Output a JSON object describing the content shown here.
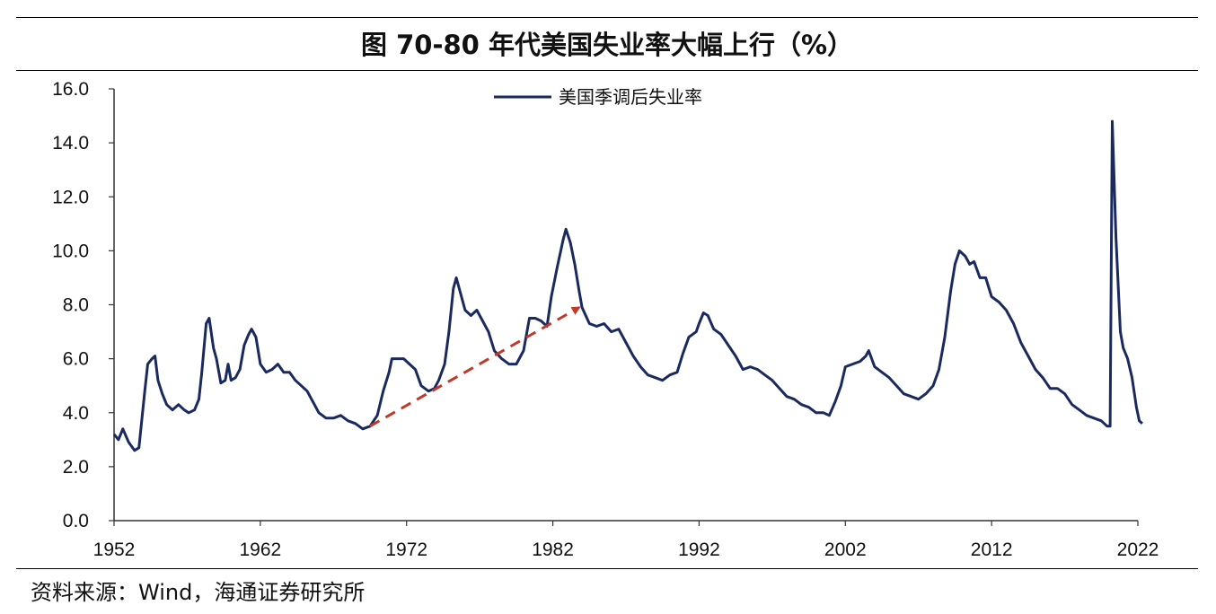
{
  "title": "图  70-80 年代美国失业率大幅上行（%）",
  "source": "资料来源：Wind，海通证券研究所",
  "colors": {
    "series": "#1b2a5e",
    "arrow": "#c0392b",
    "axis": "#333333"
  },
  "chart_data": {
    "type": "line",
    "title": "图  70-80 年代美国失业率大幅上行（%）",
    "xlabel": "",
    "ylabel": "",
    "xlim": [
      1952,
      2022
    ],
    "ylim": [
      0,
      16
    ],
    "x_ticks": [
      "1952",
      "1962",
      "1972",
      "1982",
      "1992",
      "2002",
      "2012",
      "2022"
    ],
    "y_ticks": [
      "0.0",
      "2.0",
      "4.0",
      "6.0",
      "8.0",
      "10.0",
      "12.0",
      "14.0",
      "16.0"
    ],
    "grid": false,
    "legend_position": "top-center",
    "series": [
      {
        "name": "美国季调后失业率",
        "points": [
          [
            1952.0,
            3.2
          ],
          [
            1952.3,
            3.0
          ],
          [
            1952.6,
            3.4
          ],
          [
            1953.0,
            2.9
          ],
          [
            1953.4,
            2.6
          ],
          [
            1953.7,
            2.7
          ],
          [
            1954.1,
            4.8
          ],
          [
            1954.3,
            5.8
          ],
          [
            1954.6,
            6.0
          ],
          [
            1954.8,
            6.1
          ],
          [
            1955.0,
            5.2
          ],
          [
            1955.3,
            4.7
          ],
          [
            1955.6,
            4.3
          ],
          [
            1956.0,
            4.1
          ],
          [
            1956.4,
            4.3
          ],
          [
            1956.8,
            4.1
          ],
          [
            1957.1,
            4.0
          ],
          [
            1957.5,
            4.1
          ],
          [
            1957.8,
            4.5
          ],
          [
            1958.0,
            5.5
          ],
          [
            1958.3,
            7.3
          ],
          [
            1958.5,
            7.5
          ],
          [
            1958.8,
            6.4
          ],
          [
            1959.0,
            6.0
          ],
          [
            1959.3,
            5.1
          ],
          [
            1959.6,
            5.2
          ],
          [
            1959.8,
            5.8
          ],
          [
            1960.0,
            5.2
          ],
          [
            1960.3,
            5.3
          ],
          [
            1960.6,
            5.6
          ],
          [
            1960.9,
            6.5
          ],
          [
            1961.2,
            6.9
          ],
          [
            1961.4,
            7.1
          ],
          [
            1961.7,
            6.8
          ],
          [
            1962.0,
            5.8
          ],
          [
            1962.4,
            5.5
          ],
          [
            1962.8,
            5.6
          ],
          [
            1963.2,
            5.8
          ],
          [
            1963.6,
            5.5
          ],
          [
            1964.0,
            5.5
          ],
          [
            1964.4,
            5.2
          ],
          [
            1964.8,
            5.0
          ],
          [
            1965.2,
            4.8
          ],
          [
            1965.6,
            4.4
          ],
          [
            1966.0,
            4.0
          ],
          [
            1966.5,
            3.8
          ],
          [
            1967.0,
            3.8
          ],
          [
            1967.5,
            3.9
          ],
          [
            1968.0,
            3.7
          ],
          [
            1968.5,
            3.6
          ],
          [
            1969.0,
            3.4
          ],
          [
            1969.5,
            3.5
          ],
          [
            1970.0,
            3.9
          ],
          [
            1970.4,
            4.8
          ],
          [
            1970.8,
            5.5
          ],
          [
            1971.0,
            6.0
          ],
          [
            1971.3,
            6.0
          ],
          [
            1971.8,
            6.0
          ],
          [
            1972.2,
            5.8
          ],
          [
            1972.6,
            5.6
          ],
          [
            1973.0,
            5.0
          ],
          [
            1973.5,
            4.8
          ],
          [
            1973.9,
            4.9
          ],
          [
            1974.2,
            5.2
          ],
          [
            1974.6,
            5.8
          ],
          [
            1974.9,
            7.0
          ],
          [
            1975.2,
            8.6
          ],
          [
            1975.4,
            9.0
          ],
          [
            1975.7,
            8.4
          ],
          [
            1976.0,
            7.8
          ],
          [
            1976.4,
            7.6
          ],
          [
            1976.8,
            7.8
          ],
          [
            1977.2,
            7.4
          ],
          [
            1977.6,
            7.0
          ],
          [
            1978.0,
            6.3
          ],
          [
            1978.5,
            6.0
          ],
          [
            1979.0,
            5.8
          ],
          [
            1979.5,
            5.8
          ],
          [
            1980.0,
            6.3
          ],
          [
            1980.4,
            7.5
          ],
          [
            1980.8,
            7.5
          ],
          [
            1981.2,
            7.4
          ],
          [
            1981.6,
            7.2
          ],
          [
            1981.9,
            8.3
          ],
          [
            1982.3,
            9.4
          ],
          [
            1982.7,
            10.4
          ],
          [
            1982.9,
            10.8
          ],
          [
            1983.2,
            10.3
          ],
          [
            1983.5,
            9.5
          ],
          [
            1983.8,
            8.5
          ],
          [
            1984.0,
            7.9
          ],
          [
            1984.5,
            7.3
          ],
          [
            1985.0,
            7.2
          ],
          [
            1985.5,
            7.3
          ],
          [
            1986.0,
            7.0
          ],
          [
            1986.5,
            7.1
          ],
          [
            1987.0,
            6.6
          ],
          [
            1987.5,
            6.1
          ],
          [
            1988.0,
            5.7
          ],
          [
            1988.5,
            5.4
          ],
          [
            1989.0,
            5.3
          ],
          [
            1989.5,
            5.2
          ],
          [
            1990.0,
            5.4
          ],
          [
            1990.5,
            5.5
          ],
          [
            1990.9,
            6.2
          ],
          [
            1991.3,
            6.8
          ],
          [
            1991.8,
            7.0
          ],
          [
            1992.0,
            7.3
          ],
          [
            1992.3,
            7.7
          ],
          [
            1992.6,
            7.6
          ],
          [
            1993.0,
            7.1
          ],
          [
            1993.5,
            6.9
          ],
          [
            1994.0,
            6.5
          ],
          [
            1994.5,
            6.1
          ],
          [
            1995.0,
            5.6
          ],
          [
            1995.5,
            5.7
          ],
          [
            1996.0,
            5.6
          ],
          [
            1996.5,
            5.4
          ],
          [
            1997.0,
            5.2
          ],
          [
            1997.5,
            4.9
          ],
          [
            1998.0,
            4.6
          ],
          [
            1998.5,
            4.5
          ],
          [
            1999.0,
            4.3
          ],
          [
            1999.5,
            4.2
          ],
          [
            2000.0,
            4.0
          ],
          [
            2000.5,
            4.0
          ],
          [
            2000.9,
            3.9
          ],
          [
            2001.3,
            4.4
          ],
          [
            2001.7,
            5.0
          ],
          [
            2002.0,
            5.7
          ],
          [
            2002.5,
            5.8
          ],
          [
            2003.0,
            5.9
          ],
          [
            2003.4,
            6.1
          ],
          [
            2003.6,
            6.3
          ],
          [
            2004.0,
            5.7
          ],
          [
            2004.5,
            5.5
          ],
          [
            2005.0,
            5.3
          ],
          [
            2005.5,
            5.0
          ],
          [
            2006.0,
            4.7
          ],
          [
            2006.5,
            4.6
          ],
          [
            2007.0,
            4.5
          ],
          [
            2007.5,
            4.7
          ],
          [
            2008.0,
            5.0
          ],
          [
            2008.4,
            5.6
          ],
          [
            2008.8,
            6.8
          ],
          [
            2009.2,
            8.5
          ],
          [
            2009.5,
            9.5
          ],
          [
            2009.8,
            10.0
          ],
          [
            2010.2,
            9.8
          ],
          [
            2010.5,
            9.5
          ],
          [
            2010.8,
            9.6
          ],
          [
            2011.2,
            9.0
          ],
          [
            2011.6,
            9.0
          ],
          [
            2012.0,
            8.3
          ],
          [
            2012.5,
            8.1
          ],
          [
            2013.0,
            7.8
          ],
          [
            2013.5,
            7.3
          ],
          [
            2014.0,
            6.6
          ],
          [
            2014.5,
            6.1
          ],
          [
            2015.0,
            5.6
          ],
          [
            2015.5,
            5.3
          ],
          [
            2016.0,
            4.9
          ],
          [
            2016.5,
            4.9
          ],
          [
            2017.0,
            4.7
          ],
          [
            2017.5,
            4.3
          ],
          [
            2018.0,
            4.1
          ],
          [
            2018.5,
            3.9
          ],
          [
            2019.0,
            3.8
          ],
          [
            2019.5,
            3.7
          ],
          [
            2019.9,
            3.5
          ],
          [
            2020.1,
            3.5
          ],
          [
            2020.25,
            14.8
          ],
          [
            2020.5,
            10.5
          ],
          [
            2020.8,
            7.0
          ],
          [
            2021.0,
            6.4
          ],
          [
            2021.3,
            6.0
          ],
          [
            2021.6,
            5.3
          ],
          [
            2021.9,
            4.2
          ],
          [
            2022.1,
            3.7
          ],
          [
            2022.3,
            3.6
          ]
        ]
      }
    ],
    "annotations": [
      {
        "type": "arrow",
        "style": "dashed",
        "from": [
          1969.5,
          3.5
        ],
        "to": [
          1983.8,
          7.9
        ]
      }
    ]
  }
}
